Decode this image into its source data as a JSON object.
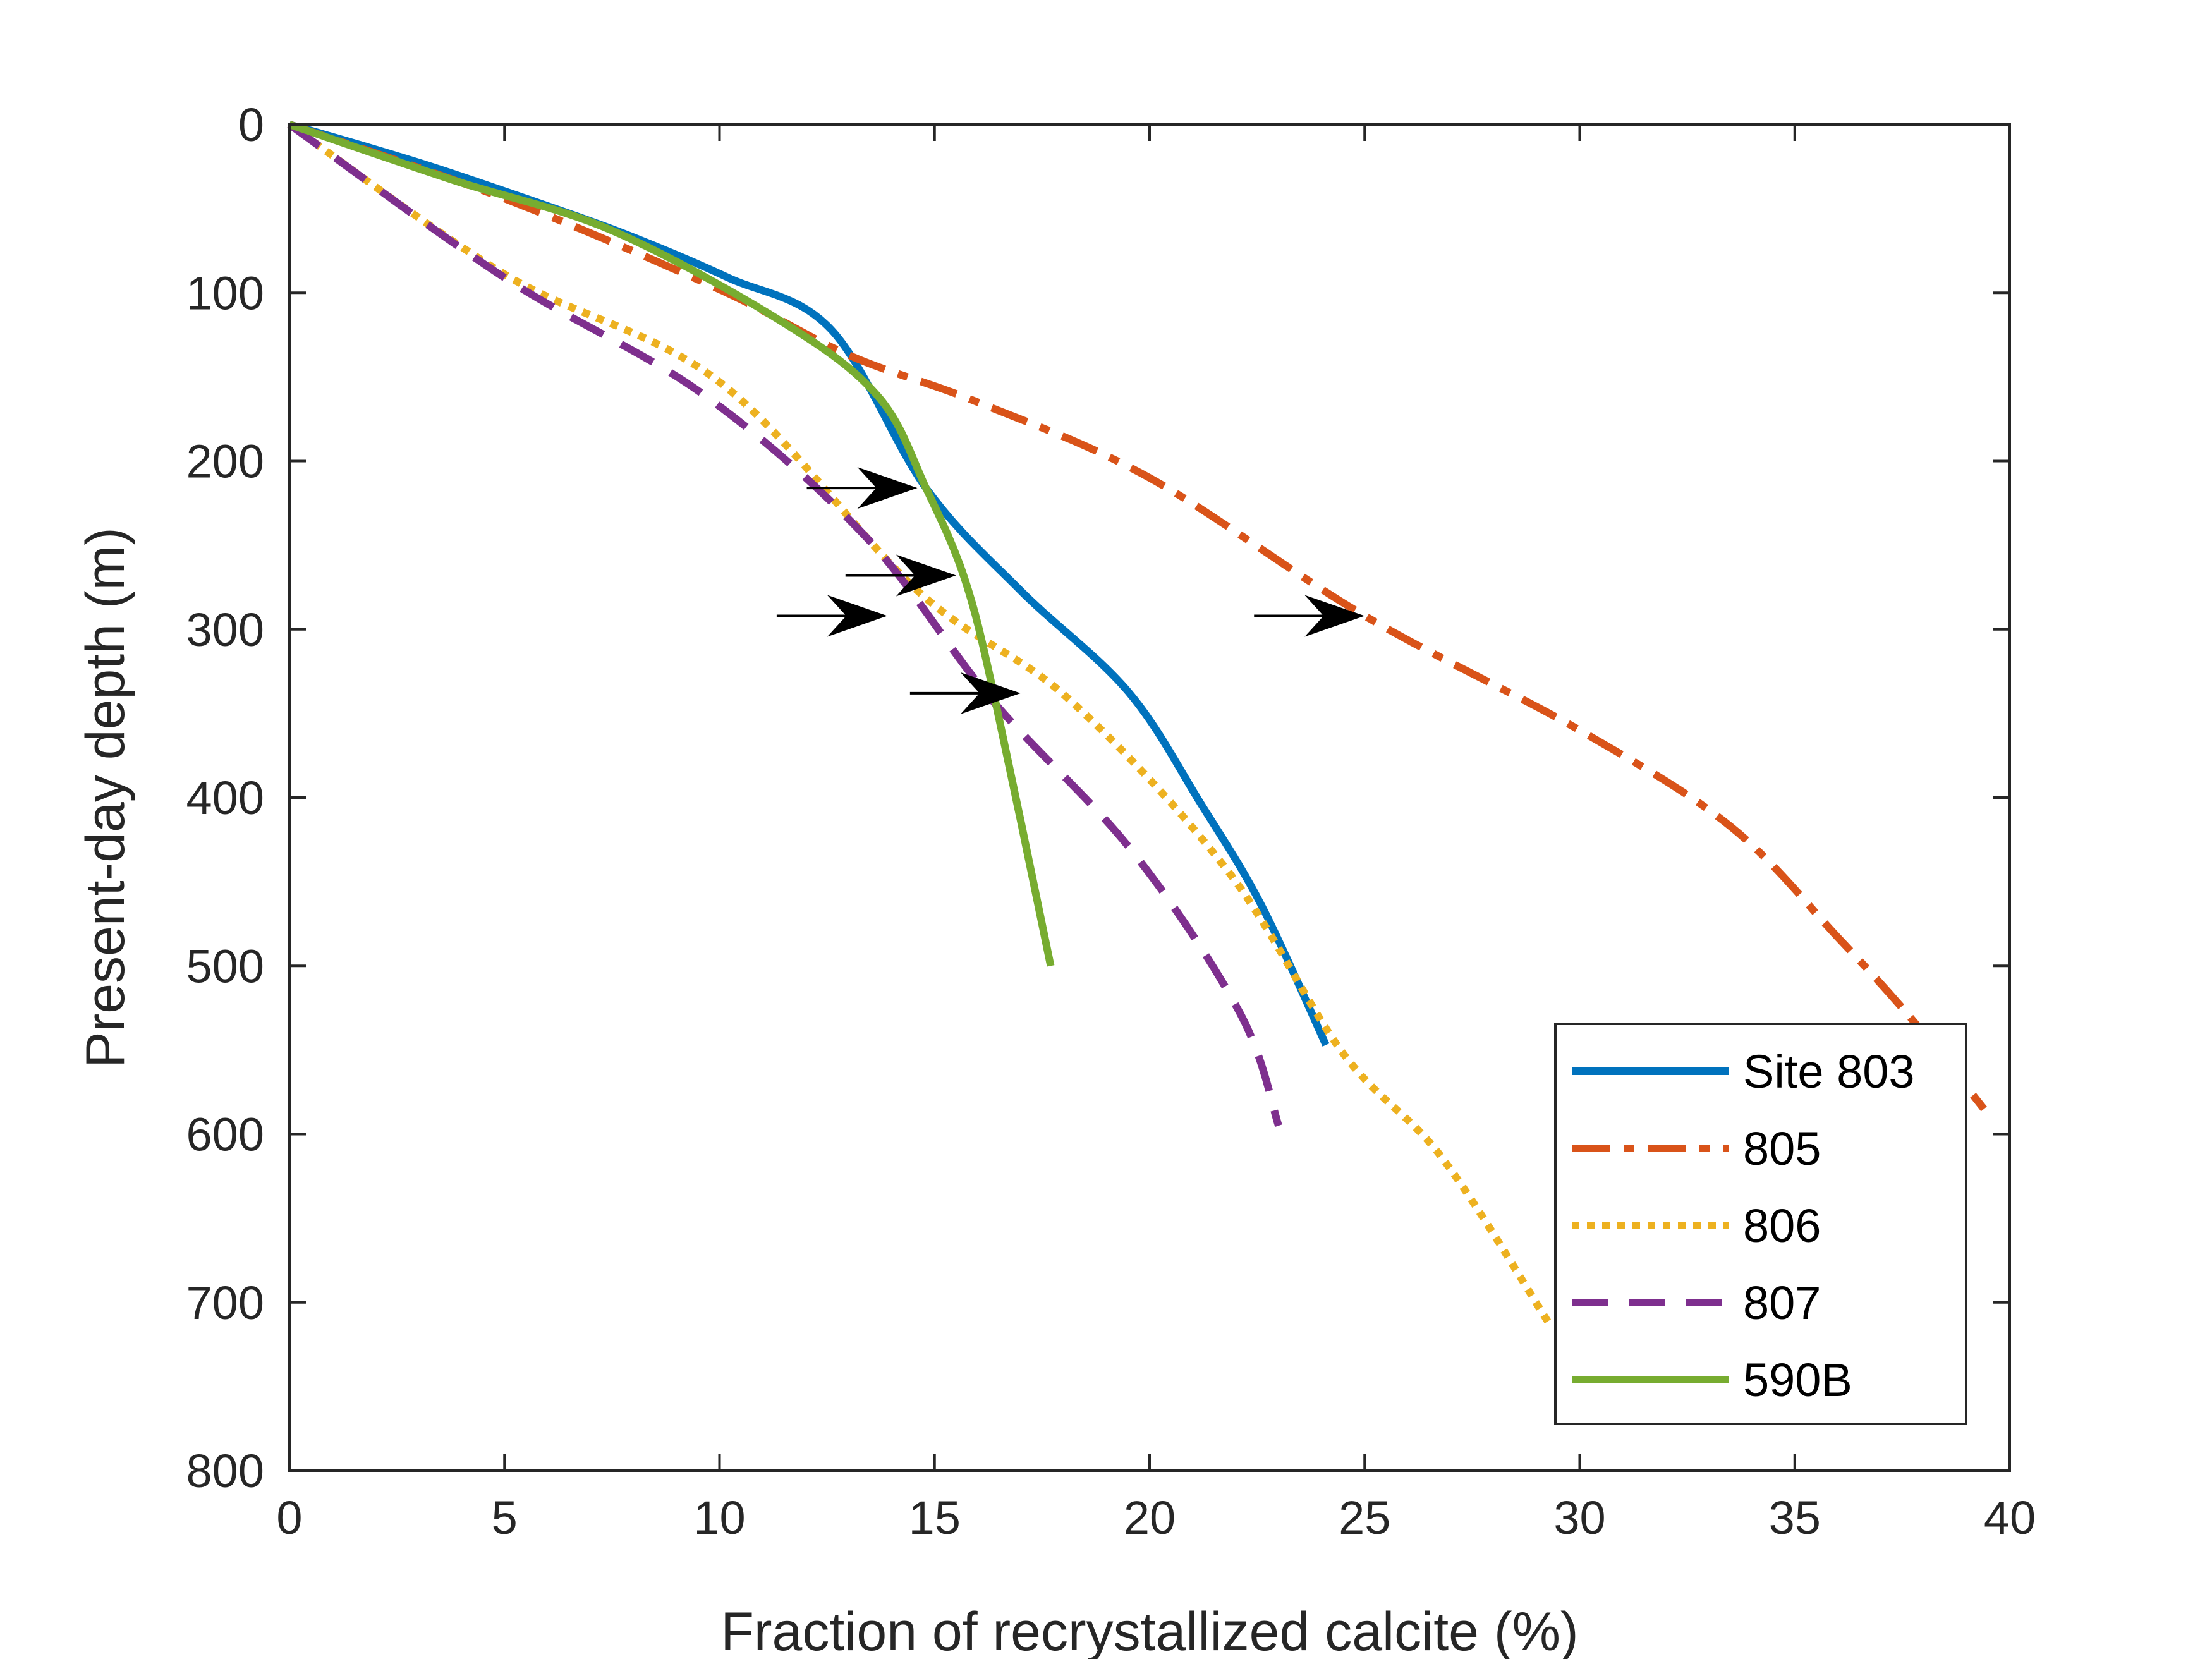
{
  "chart_data": {
    "type": "line",
    "xlabel": "Fraction of recrystallized calcite (%)",
    "ylabel": "Present-day depth (m)",
    "xlim": [
      0,
      40
    ],
    "ylim": [
      0,
      800
    ],
    "y_reversed": true,
    "xticks": [
      0,
      5,
      10,
      15,
      20,
      25,
      30,
      35,
      40
    ],
    "yticks": [
      0,
      100,
      200,
      300,
      400,
      500,
      600,
      700,
      800
    ],
    "grid": false,
    "legend_position": "bottom-right",
    "series": [
      {
        "name": "Site 803",
        "style": "solid",
        "color": "#0072BD",
        "points": [
          [
            0,
            0
          ],
          [
            1.7,
            12.5
          ],
          [
            3.4,
            25.8
          ],
          [
            5.5,
            44
          ],
          [
            7.8,
            65
          ],
          [
            10.2,
            91
          ],
          [
            12.6,
            122
          ],
          [
            14.8,
            216
          ],
          [
            17.0,
            277
          ],
          [
            19.5,
            337
          ],
          [
            21.2,
            404
          ],
          [
            22.6,
            464
          ],
          [
            24.1,
            547
          ]
        ]
      },
      {
        "name": "805",
        "style": "dashdot",
        "color": "#D95319",
        "points": [
          [
            0,
            0
          ],
          [
            5.0,
            44
          ],
          [
            10.0,
            98
          ],
          [
            13.0,
            137
          ],
          [
            16.0,
            165
          ],
          [
            20.0,
            210
          ],
          [
            25.0,
            292
          ],
          [
            30.0,
            360
          ],
          [
            33.5,
            417
          ],
          [
            36.0,
            483
          ],
          [
            37.7,
            531
          ],
          [
            39.4,
            585
          ]
        ]
      },
      {
        "name": "806",
        "style": "dotted",
        "color": "#EDB120",
        "points": [
          [
            0,
            0
          ],
          [
            5.0,
            89
          ],
          [
            10.0,
            153
          ],
          [
            14.6,
            277
          ],
          [
            18.1,
            341
          ],
          [
            21.8,
            443
          ],
          [
            24.5,
            552
          ],
          [
            26.8,
            614
          ],
          [
            29.3,
            713
          ]
        ]
      },
      {
        "name": "807",
        "style": "dashed",
        "color": "#7E2F8E",
        "points": [
          [
            0,
            0
          ],
          [
            5.0,
            91
          ],
          [
            9.6,
            160
          ],
          [
            13.4,
            245
          ],
          [
            16.3,
            341
          ],
          [
            19.6,
            432
          ],
          [
            22.1,
            528
          ],
          [
            23.0,
            595
          ]
        ]
      },
      {
        "name": "590B",
        "style": "solid",
        "color": "#77AC30",
        "points": [
          [
            0,
            0
          ],
          [
            3.8,
            33
          ],
          [
            7.5,
            63
          ],
          [
            11.5,
            118
          ],
          [
            13.7,
            162
          ],
          [
            14.8,
            216
          ],
          [
            15.7,
            270
          ],
          [
            16.4,
            341
          ],
          [
            17.7,
            500
          ]
        ]
      }
    ],
    "annotations": [
      {
        "type": "arrow",
        "x": 14.6,
        "y": 216
      },
      {
        "type": "arrow",
        "x": 15.5,
        "y": 268
      },
      {
        "type": "arrow",
        "x": 13.9,
        "y": 292
      },
      {
        "type": "arrow",
        "x": 17.0,
        "y": 338
      },
      {
        "type": "arrow",
        "x": 25.0,
        "y": 292
      }
    ]
  }
}
